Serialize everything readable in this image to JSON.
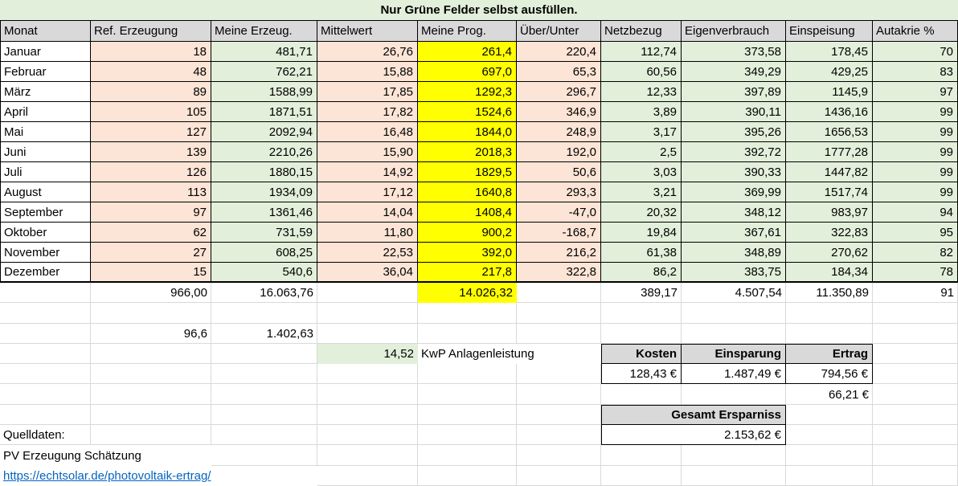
{
  "title": "Nur Grüne Felder selbst ausfüllen.",
  "columns": [
    "Monat",
    "Ref. Erzeugung",
    "Meine Erzeug.",
    "Mittelwert",
    "Meine Prog.",
    "Über/Unter",
    "Netzbezug",
    "Eigenverbrauch",
    "Einspeisung",
    "Autakrie %"
  ],
  "months": [
    {
      "monat": "Januar",
      "ref": "18",
      "meine": "481,71",
      "mittelwert": "26,76",
      "prog": "261,4",
      "ueber": "220,4",
      "netz": "112,74",
      "eigen": "373,58",
      "einsp": "178,45",
      "autarkie": "70"
    },
    {
      "monat": "Februar",
      "ref": "48",
      "meine": "762,21",
      "mittelwert": "15,88",
      "prog": "697,0",
      "ueber": "65,3",
      "netz": "60,56",
      "eigen": "349,29",
      "einsp": "429,25",
      "autarkie": "83"
    },
    {
      "monat": "März",
      "ref": "89",
      "meine": "1588,99",
      "mittelwert": "17,85",
      "prog": "1292,3",
      "ueber": "296,7",
      "netz": "12,33",
      "eigen": "397,89",
      "einsp": "1145,9",
      "autarkie": "97"
    },
    {
      "monat": "April",
      "ref": "105",
      "meine": "1871,51",
      "mittelwert": "17,82",
      "prog": "1524,6",
      "ueber": "346,9",
      "netz": "3,89",
      "eigen": "390,11",
      "einsp": "1436,16",
      "autarkie": "99"
    },
    {
      "monat": "Mai",
      "ref": "127",
      "meine": "2092,94",
      "mittelwert": "16,48",
      "prog": "1844,0",
      "ueber": "248,9",
      "netz": "3,17",
      "eigen": "395,26",
      "einsp": "1656,53",
      "autarkie": "99"
    },
    {
      "monat": "Juni",
      "ref": "139",
      "meine": "2210,26",
      "mittelwert": "15,90",
      "prog": "2018,3",
      "ueber": "192,0",
      "netz": "2,5",
      "eigen": "392,72",
      "einsp": "1777,28",
      "autarkie": "99"
    },
    {
      "monat": "Juli",
      "ref": "126",
      "meine": "1880,15",
      "mittelwert": "14,92",
      "prog": "1829,5",
      "ueber": "50,6",
      "netz": "3,03",
      "eigen": "390,33",
      "einsp": "1447,82",
      "autarkie": "99"
    },
    {
      "monat": "August",
      "ref": "113",
      "meine": "1934,09",
      "mittelwert": "17,12",
      "prog": "1640,8",
      "ueber": "293,3",
      "netz": "3,21",
      "eigen": "369,99",
      "einsp": "1517,74",
      "autarkie": "99"
    },
    {
      "monat": "September",
      "ref": "97",
      "meine": "1361,46",
      "mittelwert": "14,04",
      "prog": "1408,4",
      "ueber": "-47,0",
      "netz": "20,32",
      "eigen": "348,12",
      "einsp": "983,97",
      "autarkie": "94"
    },
    {
      "monat": "Oktober",
      "ref": "62",
      "meine": "731,59",
      "mittelwert": "11,80",
      "prog": "900,2",
      "ueber": "-168,7",
      "netz": "19,84",
      "eigen": "367,61",
      "einsp": "322,83",
      "autarkie": "95"
    },
    {
      "monat": "November",
      "ref": "27",
      "meine": "608,25",
      "mittelwert": "22,53",
      "prog": "392,0",
      "ueber": "216,2",
      "netz": "61,38",
      "eigen": "348,89",
      "einsp": "270,62",
      "autarkie": "82"
    },
    {
      "monat": "Dezember",
      "ref": "15",
      "meine": "540,6",
      "mittelwert": "36,04",
      "prog": "217,8",
      "ueber": "322,8",
      "netz": "86,2",
      "eigen": "383,75",
      "einsp": "184,34",
      "autarkie": "78"
    }
  ],
  "totals": {
    "ref": "966,00",
    "meine": "16.063,76",
    "prog": "14.026,32",
    "netz": "389,17",
    "eigen": "4.507,54",
    "einsp": "11.350,89",
    "autarkie": "91"
  },
  "sub": {
    "ref_sum": "96,6",
    "meine_avg": "1.402,63"
  },
  "anlage": {
    "kwp_value": "14,52",
    "kwp_label": "KwP Anlagenleistung"
  },
  "finance": {
    "kosten_label": "Kosten",
    "einsparung_label": "Einsparung",
    "ertrag_label": "Ertrag",
    "kosten_value": "128,43 €",
    "einsparung_value": "1.487,49 €",
    "ertrag_value": "794,56 €",
    "extra_ertrag": "66,21 €",
    "gesamt_label": "Gesamt Ersparniss",
    "gesamt_value": "2.153,62 €"
  },
  "footer": {
    "quelldaten": "Quelldaten:",
    "pv_label": "PV Erzeugung Schätzung",
    "link": "https://echtsolar.de/photovoltaik-ertrag/"
  },
  "colors": {
    "green_fill": "#E2EFDA",
    "salmon_fill": "#FCE4D6",
    "yellow_fill": "#FFFF00",
    "header_gray": "#D9D9D9",
    "link_blue": "#0563C1",
    "gridline": "#D9D9D9"
  }
}
